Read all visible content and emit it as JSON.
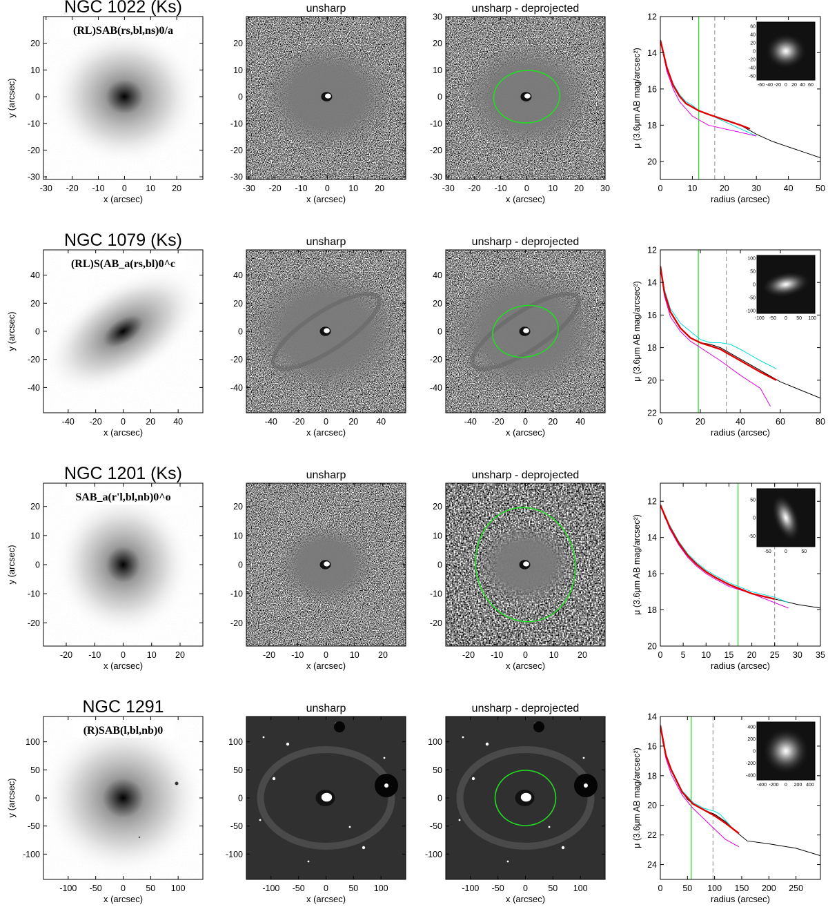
{
  "figure": {
    "ellipse_color": "#22dd22",
    "profile_colors": {
      "total": "#000000",
      "fit": "#dd0000",
      "major": "#00dddd",
      "minor": "#dd00dd",
      "bar_radius": "#22dd22",
      "dashed": "#888888"
    }
  },
  "chart_data": [
    {
      "galaxy": "NGC 1022",
      "band": "(Ks)",
      "classification": "(RL)SAB(rs,bl,ns)0/a",
      "image_type": "grayscale galaxy images",
      "panels": [
        "",
        "unsharp",
        "unsharp - deprojected"
      ],
      "image_xlabel": "x (arcsec)",
      "image_ylabel": "y (arcsec)",
      "image_range": [
        -31,
        30
      ],
      "image_ticks": [
        -30,
        -20,
        -10,
        0,
        10,
        20
      ],
      "image_ticks_deproj": [
        -30,
        -20,
        -10,
        0,
        10,
        20,
        30
      ],
      "profile": {
        "type": "line",
        "xlabel": "radius (arcsec)",
        "ylabel": "μ (3.6μm AB mag/arcsec²)",
        "xlim": [
          0,
          50
        ],
        "ylim": [
          21,
          12
        ],
        "xticks": [
          0,
          10,
          20,
          30,
          40,
          50
        ],
        "yticks": [
          12,
          14,
          16,
          18,
          20
        ],
        "bar_radius": 12,
        "dashed_radius": 17,
        "series": [
          {
            "role": "total",
            "x": [
              0,
              1,
              2,
              4,
              6,
              8,
              10,
              12,
              15,
              20,
              25,
              30,
              35,
              40,
              45,
              50
            ],
            "y": [
              13.3,
              14.1,
              14.9,
              15.8,
              16.4,
              16.8,
              17.0,
              17.2,
              17.4,
              17.7,
              18.0,
              18.5,
              18.9,
              19.2,
              19.5,
              19.8
            ]
          },
          {
            "role": "fit",
            "x": [
              0,
              2,
              4,
              6,
              8,
              10,
              12,
              15,
              20,
              25,
              28
            ],
            "y": [
              13.3,
              14.8,
              15.8,
              16.4,
              16.8,
              17.0,
              17.2,
              17.4,
              17.7,
              18.0,
              18.2
            ]
          },
          {
            "role": "major",
            "x": [
              0,
              2,
              4,
              6,
              8,
              10,
              12,
              15,
              20,
              25,
              30
            ],
            "y": [
              13.3,
              14.8,
              15.7,
              16.3,
              16.7,
              16.9,
              17.2,
              17.4,
              17.8,
              18.2,
              18.6
            ]
          },
          {
            "role": "minor",
            "x": [
              0,
              2,
              4,
              6,
              8,
              10,
              12,
              15,
              20,
              25,
              30
            ],
            "y": [
              13.3,
              15.0,
              16.0,
              16.7,
              17.1,
              17.5,
              17.7,
              18.0,
              18.2,
              18.4,
              18.6
            ]
          }
        ],
        "inset": {
          "ticks_x": [
            -60,
            -40,
            -20,
            0,
            20,
            40,
            60
          ],
          "ticks_y": [
            -60,
            -40,
            -20,
            0,
            20,
            40,
            60
          ],
          "range": 70
        }
      }
    },
    {
      "galaxy": "NGC 1079",
      "band": "(Ks)",
      "classification": "(RL)S(AB_a(rs,bl)0^c",
      "image_type": "grayscale galaxy images",
      "panels": [
        "",
        "unsharp",
        "unsharp - deprojected"
      ],
      "image_xlabel": "x (arcsec)",
      "image_ylabel": "y (arcsec)",
      "image_range": [
        -58,
        58
      ],
      "image_ticks": [
        -40,
        -20,
        0,
        20,
        40
      ],
      "image_ticks_deproj": [
        -40,
        -20,
        0,
        20,
        40
      ],
      "profile": {
        "type": "line",
        "xlabel": "radius (arcsec)",
        "ylabel": "μ (3.6μm AB mag/arcsec²)",
        "xlim": [
          0,
          80
        ],
        "ylim": [
          22,
          12
        ],
        "xticks": [
          0,
          20,
          40,
          60,
          80
        ],
        "yticks": [
          12,
          14,
          16,
          18,
          20,
          22
        ],
        "bar_radius": 19,
        "dashed_radius": 33,
        "series": [
          {
            "role": "total",
            "x": [
              0,
              2,
              5,
              10,
              15,
              20,
              25,
              30,
              40,
              50,
              60,
              70,
              80
            ],
            "y": [
              13.0,
              14.6,
              15.8,
              16.8,
              17.4,
              17.7,
              17.8,
              18.0,
              18.7,
              19.4,
              20.1,
              20.6,
              21.1
            ]
          },
          {
            "role": "fit",
            "x": [
              0,
              2,
              5,
              10,
              15,
              20,
              25,
              30,
              40,
              50,
              58
            ],
            "y": [
              13.0,
              14.6,
              15.8,
              16.8,
              17.4,
              17.7,
              17.9,
              18.1,
              18.8,
              19.5,
              20.0
            ]
          },
          {
            "role": "major",
            "x": [
              0,
              2,
              5,
              10,
              15,
              20,
              25,
              30,
              35,
              40,
              50,
              58
            ],
            "y": [
              13.0,
              14.4,
              15.6,
              16.5,
              17.0,
              17.5,
              17.7,
              17.7,
              17.8,
              18.1,
              18.8,
              19.3
            ]
          },
          {
            "role": "minor",
            "x": [
              0,
              2,
              5,
              10,
              15,
              20,
              25,
              30,
              40,
              50,
              55
            ],
            "y": [
              13.0,
              14.8,
              16.1,
              17.0,
              17.6,
              18.0,
              18.4,
              18.8,
              19.7,
              20.5,
              21.6
            ]
          }
        ],
        "inset": {
          "ticks_x": [
            -100,
            -50,
            0,
            50,
            100
          ],
          "ticks_y": [
            -100,
            -50,
            0,
            50,
            100
          ],
          "range": 110
        }
      }
    },
    {
      "galaxy": "NGC 1201",
      "band": "(Ks)",
      "classification": "SAB_a(r'l,bl,nb)0^o",
      "image_type": "grayscale galaxy images",
      "panels": [
        "",
        "unsharp",
        "unsharp - deprojected"
      ],
      "image_xlabel": "x (arcsec)",
      "image_ylabel": "y (arcsec)",
      "image_range": [
        -28,
        28
      ],
      "image_ticks": [
        -20,
        -10,
        0,
        10,
        20
      ],
      "image_ticks_deproj": [
        -20,
        -10,
        0,
        10,
        20
      ],
      "profile": {
        "type": "line",
        "xlabel": "radius (arcsec)",
        "ylabel": "μ (3.6μm AB mag/arcsec²)",
        "xlim": [
          0,
          35
        ],
        "ylim": [
          20,
          11
        ],
        "xticks": [
          0,
          5,
          10,
          15,
          20,
          25,
          30,
          35
        ],
        "yticks": [
          12,
          14,
          16,
          18,
          20
        ],
        "bar_radius": 17,
        "dashed_radius": 25,
        "series": [
          {
            "role": "total",
            "x": [
              0,
              1,
              2,
              4,
              6,
              8,
              10,
              12,
              15,
              20,
              25,
              30,
              35
            ],
            "y": [
              12.2,
              12.9,
              13.4,
              14.3,
              15.0,
              15.5,
              15.9,
              16.2,
              16.6,
              17.1,
              17.4,
              17.7,
              17.9
            ]
          },
          {
            "role": "fit",
            "x": [
              0,
              2,
              4,
              6,
              8,
              10,
              12,
              15,
              20,
              25
            ],
            "y": [
              12.2,
              13.4,
              14.3,
              15.0,
              15.5,
              15.9,
              16.2,
              16.6,
              17.1,
              17.4
            ]
          },
          {
            "role": "major",
            "x": [
              0,
              2,
              4,
              6,
              8,
              10,
              12,
              15,
              20,
              25,
              28
            ],
            "y": [
              12.2,
              13.3,
              14.2,
              14.9,
              15.4,
              15.8,
              16.1,
              16.5,
              17.0,
              17.3,
              17.6
            ]
          },
          {
            "role": "minor",
            "x": [
              0,
              2,
              4,
              6,
              8,
              10,
              12,
              15,
              20,
              25,
              28
            ],
            "y": [
              12.2,
              13.5,
              14.4,
              15.1,
              15.6,
              16.0,
              16.3,
              16.7,
              17.1,
              17.6,
              17.9
            ]
          }
        ],
        "inset": {
          "ticks_x": [
            -50,
            0,
            50
          ],
          "ticks_y": [
            -50,
            0,
            50
          ],
          "range": 80
        }
      }
    },
    {
      "galaxy": "NGC 1291",
      "band": "",
      "classification": "(R)SAB(l,bl,nb)0",
      "image_type": "grayscale galaxy images",
      "panels": [
        "",
        "unsharp",
        "unsharp - deprojected"
      ],
      "image_xlabel": "x (arcsec)",
      "image_ylabel": "y (arcsec)",
      "image_range": [
        -145,
        145
      ],
      "image_ticks": [
        -100,
        -50,
        0,
        50,
        100
      ],
      "image_ticks_deproj": [
        -100,
        -50,
        0,
        50,
        100
      ],
      "profile": {
        "type": "line",
        "xlabel": "radius (arcsec)",
        "ylabel": "μ (3.6μm AB mag/arcsec²)",
        "xlim": [
          0,
          295
        ],
        "ylim": [
          25,
          14
        ],
        "xticks": [
          0,
          50,
          100,
          150,
          200,
          250
        ],
        "yticks": [
          14,
          16,
          18,
          20,
          22,
          24
        ],
        "bar_radius": 57,
        "dashed_radius": 97,
        "series": [
          {
            "role": "total",
            "x": [
              0,
              5,
              10,
              20,
              30,
              40,
              50,
              60,
              80,
              100,
              120,
              140,
              160,
              200,
              250,
              295
            ],
            "y": [
              14.6,
              15.8,
              16.6,
              17.6,
              18.4,
              19.1,
              19.6,
              19.9,
              20.3,
              20.6,
              21.1,
              21.8,
              22.4,
              22.6,
              22.9,
              23.4
            ]
          },
          {
            "role": "fit",
            "x": [
              0,
              10,
              20,
              40,
              60,
              80,
              100,
              120,
              145
            ],
            "y": [
              14.6,
              16.6,
              17.6,
              19.1,
              19.9,
              20.3,
              20.7,
              21.2,
              21.9
            ]
          },
          {
            "role": "major",
            "x": [
              0,
              10,
              20,
              40,
              60,
              80,
              100,
              110,
              130
            ],
            "y": [
              14.6,
              16.5,
              17.5,
              19.0,
              19.8,
              20.2,
              20.4,
              20.6,
              21.4
            ]
          },
          {
            "role": "minor",
            "x": [
              0,
              10,
              20,
              40,
              60,
              80,
              100,
              120,
              145
            ],
            "y": [
              14.6,
              16.8,
              17.9,
              19.3,
              20.2,
              20.9,
              21.6,
              22.3,
              22.8
            ]
          }
        ],
        "inset": {
          "ticks_x": [
            -400,
            -200,
            0,
            200,
            400
          ],
          "ticks_y": [
            -400,
            -200,
            0,
            200,
            400
          ],
          "range": 480
        }
      }
    }
  ]
}
